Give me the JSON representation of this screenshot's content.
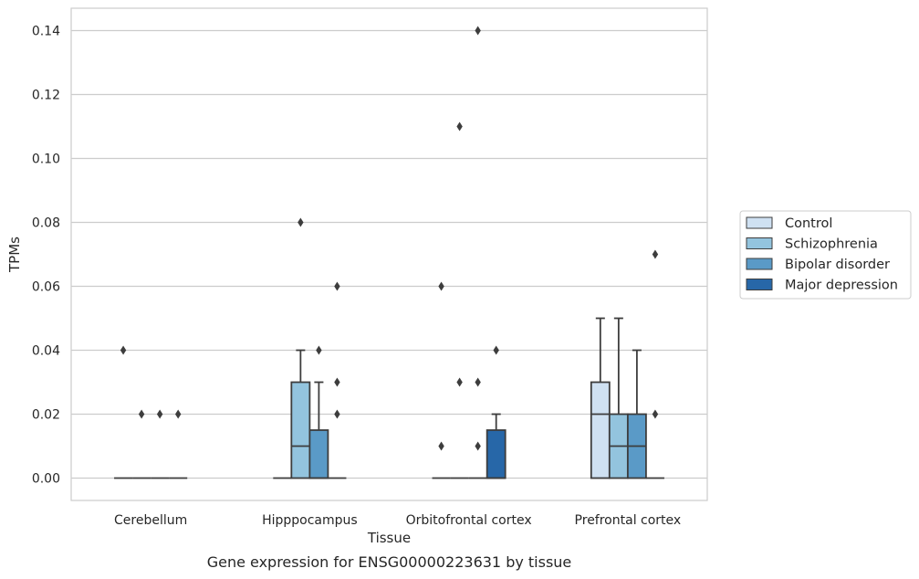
{
  "chart_data": {
    "type": "box",
    "title": "",
    "caption": "Gene expression for ENSG00000223631 by tissue",
    "xlabel": "Tissue",
    "ylabel": "TPMs",
    "ylim": [
      -0.007,
      0.147
    ],
    "yticks": [
      0.0,
      0.02,
      0.04,
      0.06,
      0.08,
      0.1,
      0.12,
      0.14
    ],
    "ytick_labels": [
      "0.00",
      "0.02",
      "0.04",
      "0.06",
      "0.08",
      "0.10",
      "0.12",
      "0.14"
    ],
    "grid": "horizontal",
    "legend_position": "right",
    "categories": [
      "Cerebellum",
      "Hipppocampus",
      "Orbitofrontal cortex",
      "Prefrontal cortex"
    ],
    "series": [
      {
        "name": "Control",
        "color": "#cfe1f2",
        "boxes": [
          {
            "q1": 0,
            "median": 0,
            "q3": 0,
            "whisker_low": 0,
            "whisker_high": 0,
            "outliers": [
              0.04
            ]
          },
          {
            "q1": 0,
            "median": 0,
            "q3": 0,
            "whisker_low": 0,
            "whisker_high": 0,
            "outliers": []
          },
          {
            "q1": 0,
            "median": 0,
            "q3": 0,
            "whisker_low": 0,
            "whisker_high": 0,
            "outliers": [
              0.06,
              0.01
            ]
          },
          {
            "q1": 0,
            "median": 0.02,
            "q3": 0.03,
            "whisker_low": 0,
            "whisker_high": 0.05,
            "outliers": []
          }
        ]
      },
      {
        "name": "Schizophrenia",
        "color": "#93c4de",
        "boxes": [
          {
            "q1": 0,
            "median": 0,
            "q3": 0,
            "whisker_low": 0,
            "whisker_high": 0,
            "outliers": [
              0.02
            ]
          },
          {
            "q1": 0,
            "median": 0.01,
            "q3": 0.03,
            "whisker_low": 0,
            "whisker_high": 0.04,
            "outliers": [
              0.08
            ]
          },
          {
            "q1": 0,
            "median": 0,
            "q3": 0,
            "whisker_low": 0,
            "whisker_high": 0,
            "outliers": [
              0.11,
              0.03
            ]
          },
          {
            "q1": 0,
            "median": 0.01,
            "q3": 0.02,
            "whisker_low": 0,
            "whisker_high": 0.05,
            "outliers": []
          }
        ]
      },
      {
        "name": "Bipolar disorder",
        "color": "#5a9ac7",
        "boxes": [
          {
            "q1": 0,
            "median": 0,
            "q3": 0,
            "whisker_low": 0,
            "whisker_high": 0,
            "outliers": [
              0.02
            ]
          },
          {
            "q1": 0,
            "median": 0,
            "q3": 0.015,
            "whisker_low": 0,
            "whisker_high": 0.03,
            "outliers": [
              0.04
            ]
          },
          {
            "q1": 0,
            "median": 0,
            "q3": 0,
            "whisker_low": 0,
            "whisker_high": 0,
            "outliers": [
              0.14,
              0.03,
              0.01
            ]
          },
          {
            "q1": 0,
            "median": 0.01,
            "q3": 0.02,
            "whisker_low": 0,
            "whisker_high": 0.04,
            "outliers": []
          }
        ]
      },
      {
        "name": "Major depression",
        "color": "#2767a8",
        "boxes": [
          {
            "q1": 0,
            "median": 0,
            "q3": 0,
            "whisker_low": 0,
            "whisker_high": 0,
            "outliers": [
              0.02
            ]
          },
          {
            "q1": 0,
            "median": 0,
            "q3": 0,
            "whisker_low": 0,
            "whisker_high": 0,
            "outliers": [
              0.06,
              0.03,
              0.02
            ]
          },
          {
            "q1": 0,
            "median": 0,
            "q3": 0.015,
            "whisker_low": 0,
            "whisker_high": 0.02,
            "outliers": [
              0.04
            ]
          },
          {
            "q1": 0,
            "median": 0,
            "q3": 0,
            "whisker_low": 0,
            "whisker_high": 0,
            "outliers": [
              0.07,
              0.02
            ]
          }
        ]
      }
    ],
    "colors": {
      "grid": "#cccccc",
      "frame": "#cccccc",
      "line": "#3d3d3d",
      "text": "#262626"
    }
  }
}
